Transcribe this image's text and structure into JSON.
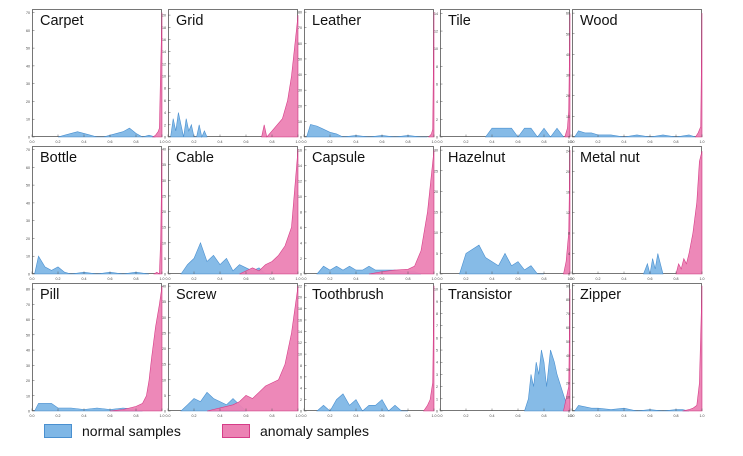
{
  "chart_data": {
    "type": "area",
    "panel_titles": [
      "Carpet",
      "Grid",
      "Leather",
      "Tile",
      "Wood",
      "Bottle",
      "Cable",
      "Capsule",
      "Hazelnut",
      "Metal nut",
      "Pill",
      "Screw",
      "Toothbrush",
      "Transistor",
      "Zipper"
    ],
    "x_ticks": [
      "0.0",
      "0.2",
      "0.4",
      "0.6",
      "0.8",
      "1.0"
    ],
    "xlim": [
      0,
      1
    ],
    "colors": {
      "normal_fill": "#7fb7e6",
      "normal_line": "#4a90d0",
      "anomaly_fill": "#ec82b4",
      "anomaly_line": "#d63d88"
    },
    "legend": [
      {
        "label": "normal samples",
        "color": "#7fb7e6"
      },
      {
        "label": "anomaly samples",
        "color": "#ec82b4"
      }
    ],
    "panels": [
      {
        "title": "Carpet",
        "yticks": [
          "0",
          "10",
          "20",
          "30",
          "40",
          "50",
          "60",
          "70"
        ],
        "ymax": 72,
        "normal": {
          "x": [
            0.2,
            0.25,
            0.3,
            0.35,
            0.4,
            0.45,
            0.5,
            0.55,
            0.6,
            0.65,
            0.7,
            0.75,
            0.8,
            0.85,
            0.9,
            0.95
          ],
          "y": [
            0,
            1,
            2,
            3,
            2,
            1,
            0,
            0,
            1,
            2,
            3,
            5,
            2,
            0,
            1,
            0
          ]
        },
        "anomaly": {
          "x": [
            0.93,
            0.95,
            0.97,
            0.98,
            0.99,
            1.0
          ],
          "y": [
            0,
            1,
            3,
            5,
            40,
            70
          ]
        }
      },
      {
        "title": "Grid",
        "yticks": [
          "0",
          "2",
          "4",
          "6",
          "8",
          "10",
          "12",
          "14",
          "16",
          "18",
          "20"
        ],
        "ymax": 21,
        "normal": {
          "x": [
            0.02,
            0.04,
            0.06,
            0.08,
            0.1,
            0.12,
            0.14,
            0.16,
            0.18,
            0.2,
            0.22,
            0.24,
            0.26,
            0.28,
            0.3
          ],
          "y": [
            0,
            3,
            1,
            4,
            2,
            0,
            3,
            1,
            2,
            0,
            0,
            2,
            0,
            1,
            0
          ]
        },
        "anomaly": {
          "x": [
            0.72,
            0.74,
            0.76,
            0.8,
            0.84,
            0.88,
            0.92,
            0.95,
            0.98,
            1.0
          ],
          "y": [
            0,
            2,
            0,
            1,
            2,
            3,
            6,
            10,
            16,
            20
          ]
        }
      },
      {
        "title": "Leather",
        "yticks": [
          "0",
          "10",
          "20",
          "30",
          "40",
          "50",
          "60",
          "70",
          "80"
        ],
        "ymax": 82,
        "normal": {
          "x": [
            0.02,
            0.05,
            0.1,
            0.15,
            0.2,
            0.25,
            0.3,
            0.4,
            0.5,
            0.6,
            0.7,
            0.8,
            0.9,
            0.95
          ],
          "y": [
            0,
            8,
            7,
            5,
            3,
            2,
            0,
            1,
            0,
            1,
            0,
            1,
            0,
            0
          ]
        },
        "anomaly": {
          "x": [
            0.96,
            0.98,
            0.99,
            1.0
          ],
          "y": [
            0,
            2,
            5,
            80
          ]
        }
      },
      {
        "title": "Tile",
        "yticks": [
          "0",
          "2",
          "4",
          "6",
          "8",
          "10",
          "12",
          "14"
        ],
        "ymax": 14.5,
        "normal": {
          "x": [
            0.35,
            0.4,
            0.45,
            0.5,
            0.55,
            0.6,
            0.65,
            0.7,
            0.75,
            0.8,
            0.85,
            0.9,
            0.95
          ],
          "y": [
            0,
            1,
            1,
            1,
            1,
            0,
            1,
            1,
            0,
            1,
            0,
            1,
            0
          ]
        },
        "anomaly": {
          "x": [
            0.96,
            0.98,
            0.99,
            1.0
          ],
          "y": [
            0,
            1,
            3,
            14
          ]
        }
      },
      {
        "title": "Wood",
        "yticks": [
          "0",
          "10",
          "20",
          "30",
          "40",
          "50",
          "60"
        ],
        "ymax": 62,
        "normal": {
          "x": [
            0.02,
            0.05,
            0.1,
            0.15,
            0.2,
            0.3,
            0.4,
            0.5,
            0.6,
            0.7,
            0.8,
            0.9,
            0.95
          ],
          "y": [
            0,
            3,
            2,
            2,
            1,
            1,
            0,
            1,
            0,
            1,
            0,
            1,
            0
          ]
        },
        "anomaly": {
          "x": [
            0.95,
            0.97,
            0.99,
            1.0
          ],
          "y": [
            0,
            2,
            5,
            60
          ]
        }
      },
      {
        "title": "Bottle",
        "yticks": [
          "0",
          "10",
          "20",
          "30",
          "40",
          "50",
          "60",
          "70"
        ],
        "ymax": 72,
        "normal": {
          "x": [
            0.02,
            0.05,
            0.1,
            0.15,
            0.2,
            0.25,
            0.3,
            0.4,
            0.5,
            0.6,
            0.7,
            0.8,
            0.9
          ],
          "y": [
            0,
            10,
            4,
            2,
            4,
            1,
            0,
            1,
            0,
            1,
            0,
            1,
            0
          ]
        },
        "anomaly": {
          "x": [
            0.94,
            0.96,
            0.98,
            0.99,
            1.0
          ],
          "y": [
            0,
            1,
            0,
            20,
            70
          ]
        }
      },
      {
        "title": "Cable",
        "yticks": [
          "0",
          "5",
          "10",
          "15",
          "20",
          "25",
          "30",
          "35",
          "40"
        ],
        "ymax": 41,
        "normal": {
          "x": [
            0.1,
            0.15,
            0.2,
            0.25,
            0.3,
            0.35,
            0.4,
            0.45,
            0.5,
            0.55,
            0.6,
            0.65,
            0.7,
            0.75,
            0.8
          ],
          "y": [
            0,
            3,
            5,
            10,
            4,
            6,
            3,
            5,
            1,
            3,
            2,
            1,
            2,
            0,
            0
          ]
        },
        "anomaly": {
          "x": [
            0.55,
            0.6,
            0.65,
            0.7,
            0.75,
            0.8,
            0.85,
            0.9,
            0.95,
            1.0
          ],
          "y": [
            0,
            1,
            2,
            1,
            3,
            4,
            6,
            9,
            15,
            40
          ]
        }
      },
      {
        "title": "Capsule",
        "yticks": [
          "0",
          "2",
          "4",
          "6",
          "8",
          "10",
          "12",
          "14",
          "16"
        ],
        "ymax": 16.5,
        "normal": {
          "x": [
            0.1,
            0.15,
            0.2,
            0.25,
            0.3,
            0.35,
            0.4,
            0.45,
            0.5,
            0.55,
            0.6,
            0.65,
            0.7,
            0.75,
            0.8,
            0.85,
            0.9
          ],
          "y": [
            0,
            1,
            0.5,
            1,
            0.5,
            1,
            0.5,
            0.5,
            1,
            0.5,
            0.5,
            0.5,
            0.5,
            0.3,
            0.3,
            0.3,
            0
          ]
        },
        "anomaly": {
          "x": [
            0.5,
            0.6,
            0.7,
            0.8,
            0.85,
            0.9,
            0.95,
            1.0
          ],
          "y": [
            0,
            0.3,
            0.5,
            0.6,
            1,
            3,
            8,
            16
          ]
        }
      },
      {
        "title": "Hazelnut",
        "yticks": [
          "0",
          "5",
          "10",
          "15",
          "20",
          "25",
          "30"
        ],
        "ymax": 31,
        "normal": {
          "x": [
            0.15,
            0.2,
            0.25,
            0.3,
            0.35,
            0.4,
            0.45,
            0.5,
            0.55,
            0.6,
            0.65,
            0.7,
            0.75,
            0.8
          ],
          "y": [
            0,
            5,
            6,
            7,
            4,
            3,
            2,
            5,
            2,
            3,
            1,
            2,
            0,
            0
          ]
        },
        "anomaly": {
          "x": [
            0.95,
            0.97,
            0.99,
            1.0
          ],
          "y": [
            0,
            3,
            10,
            30
          ]
        }
      },
      {
        "title": "Metal nut",
        "yticks": [
          "0",
          "4",
          "8",
          "12",
          "16",
          "20",
          "24"
        ],
        "ymax": 25,
        "normal": {
          "x": [
            0.55,
            0.58,
            0.6,
            0.62,
            0.64,
            0.66,
            0.68,
            0.7
          ],
          "y": [
            0,
            2,
            0,
            3,
            1,
            4,
            2,
            0
          ]
        },
        "anomaly": {
          "x": [
            0.8,
            0.82,
            0.84,
            0.86,
            0.88,
            0.9,
            0.93,
            0.96,
            0.98,
            1.0
          ],
          "y": [
            0,
            2,
            1,
            3,
            2,
            4,
            8,
            14,
            22,
            24
          ]
        }
      },
      {
        "title": "Pill",
        "yticks": [
          "0",
          "10",
          "20",
          "30",
          "40",
          "50",
          "60",
          "70",
          "80"
        ],
        "ymax": 84,
        "normal": {
          "x": [
            0.02,
            0.05,
            0.1,
            0.15,
            0.2,
            0.3,
            0.4,
            0.5,
            0.6,
            0.7,
            0.8,
            0.85
          ],
          "y": [
            0,
            5,
            5,
            5,
            2,
            2,
            1,
            2,
            1,
            2,
            1,
            0
          ]
        },
        "anomaly": {
          "x": [
            0.6,
            0.7,
            0.75,
            0.8,
            0.85,
            0.88,
            0.9,
            0.92,
            0.95,
            0.98,
            1.0
          ],
          "y": [
            0,
            1,
            2,
            3,
            5,
            10,
            20,
            35,
            55,
            70,
            82
          ]
        }
      },
      {
        "title": "Screw",
        "yticks": [
          "0",
          "5",
          "10",
          "15",
          "20",
          "25",
          "30",
          "35",
          "40"
        ],
        "ymax": 41,
        "normal": {
          "x": [
            0.1,
            0.15,
            0.2,
            0.25,
            0.3,
            0.35,
            0.4,
            0.45,
            0.5,
            0.55,
            0.6
          ],
          "y": [
            0,
            2,
            4,
            3,
            6,
            4,
            3,
            2,
            4,
            2,
            0
          ]
        },
        "anomaly": {
          "x": [
            0.3,
            0.4,
            0.5,
            0.55,
            0.6,
            0.65,
            0.7,
            0.75,
            0.8,
            0.85,
            0.9,
            0.95,
            1.0
          ],
          "y": [
            0,
            1,
            2,
            3,
            5,
            4,
            6,
            8,
            9,
            10,
            15,
            25,
            40
          ]
        }
      },
      {
        "title": "Toothbrush",
        "yticks": [
          "0",
          "2",
          "4",
          "6",
          "8",
          "10",
          "12",
          "14",
          "16",
          "18",
          "20",
          "22"
        ],
        "ymax": 22.5,
        "normal": {
          "x": [
            0.1,
            0.15,
            0.2,
            0.25,
            0.3,
            0.35,
            0.4,
            0.45,
            0.5,
            0.55,
            0.6,
            0.65,
            0.7,
            0.75,
            0.8
          ],
          "y": [
            0,
            1,
            0,
            2,
            3,
            1,
            2,
            0,
            1,
            1,
            2,
            0,
            1,
            0,
            0
          ]
        },
        "anomaly": {
          "x": [
            0.92,
            0.95,
            0.97,
            0.99,
            1.0
          ],
          "y": [
            0,
            1,
            2,
            5,
            22
          ]
        }
      },
      {
        "title": "Transistor",
        "yticks": [
          "0",
          "1",
          "2",
          "3",
          "4",
          "5",
          "6",
          "7",
          "8",
          "9",
          "10"
        ],
        "ymax": 10.5,
        "normal": {
          "x": [
            0.65,
            0.68,
            0.7,
            0.72,
            0.74,
            0.76,
            0.78,
            0.8,
            0.82,
            0.85,
            0.88,
            0.9,
            0.93,
            0.96,
            1.0
          ],
          "y": [
            0,
            1,
            3,
            2,
            4,
            3,
            5,
            4,
            2,
            5,
            4,
            3,
            2,
            1,
            0
          ]
        },
        "anomaly": {
          "x": [
            0.95,
            0.97,
            0.99,
            1.0
          ],
          "y": [
            0,
            1,
            2,
            10
          ]
        }
      },
      {
        "title": "Zipper",
        "yticks": [
          "0",
          "10",
          "20",
          "30",
          "40",
          "50",
          "60",
          "70",
          "80",
          "90"
        ],
        "ymax": 92,
        "normal": {
          "x": [
            0.02,
            0.05,
            0.1,
            0.15,
            0.2,
            0.3,
            0.4,
            0.5,
            0.6,
            0.7,
            0.8,
            0.85,
            0.9
          ],
          "y": [
            0,
            4,
            3,
            2,
            2,
            1,
            2,
            0,
            1,
            0,
            1,
            1,
            0
          ]
        },
        "anomaly": {
          "x": [
            0.85,
            0.9,
            0.93,
            0.96,
            0.98,
            1.0
          ],
          "y": [
            0,
            1,
            2,
            4,
            20,
            90
          ]
        }
      }
    ]
  }
}
